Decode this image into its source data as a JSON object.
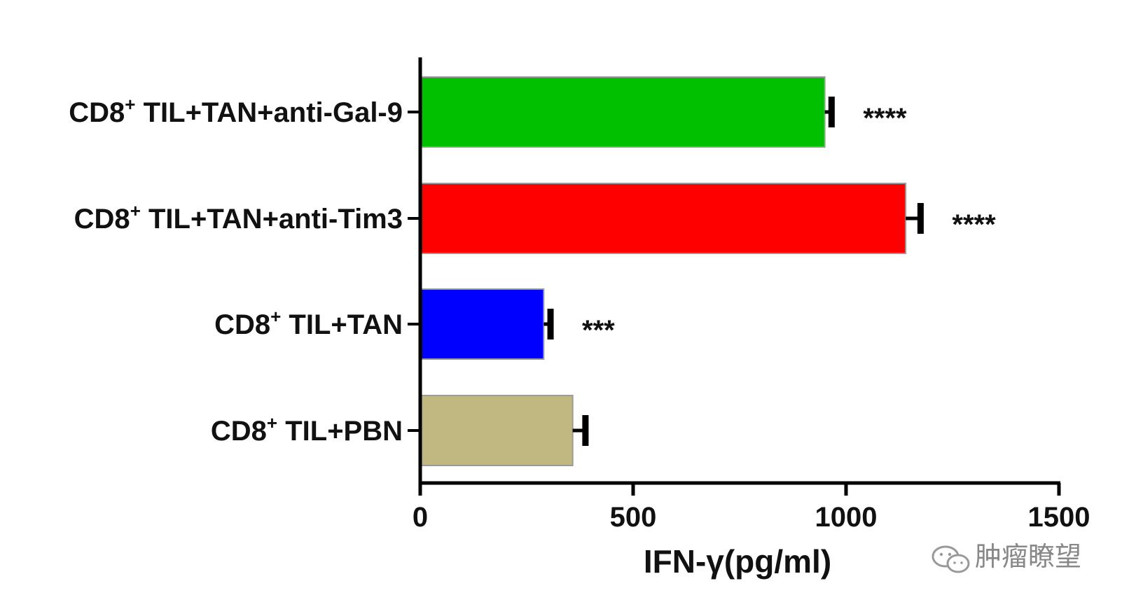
{
  "chart_data": {
    "type": "bar",
    "orientation": "horizontal",
    "categories": [
      {
        "prefix": "CD8",
        "sup": "+",
        "suffix": " TIL+TAN+anti-Gal-9",
        "color": "#00c000",
        "value": 950,
        "error": 16,
        "sig": "****"
      },
      {
        "prefix": "CD8",
        "sup": "+",
        "suffix": " TIL+TAN+anti-Tim3",
        "color": "#ff0000",
        "value": 1140,
        "error": 35,
        "sig": "****"
      },
      {
        "prefix": "CD8",
        "sup": "+",
        "suffix": " TIL+TAN",
        "color": "#0000ff",
        "value": 290,
        "error": 16,
        "sig": "***"
      },
      {
        "prefix": "CD8",
        "sup": "+",
        "suffix": " TIL+PBN",
        "color": "#c0b880",
        "value": 358,
        "error": 30,
        "sig": ""
      }
    ],
    "xlabel": "IFN-γ(pg/ml)",
    "ylabel": "",
    "xlim": [
      0,
      1500
    ],
    "xticks": [
      "0",
      "500",
      "1000",
      "1500"
    ],
    "grid": false,
    "legend": "none"
  },
  "watermark": {
    "text": "肿瘤瞭望",
    "icon": "wechat-icon"
  }
}
